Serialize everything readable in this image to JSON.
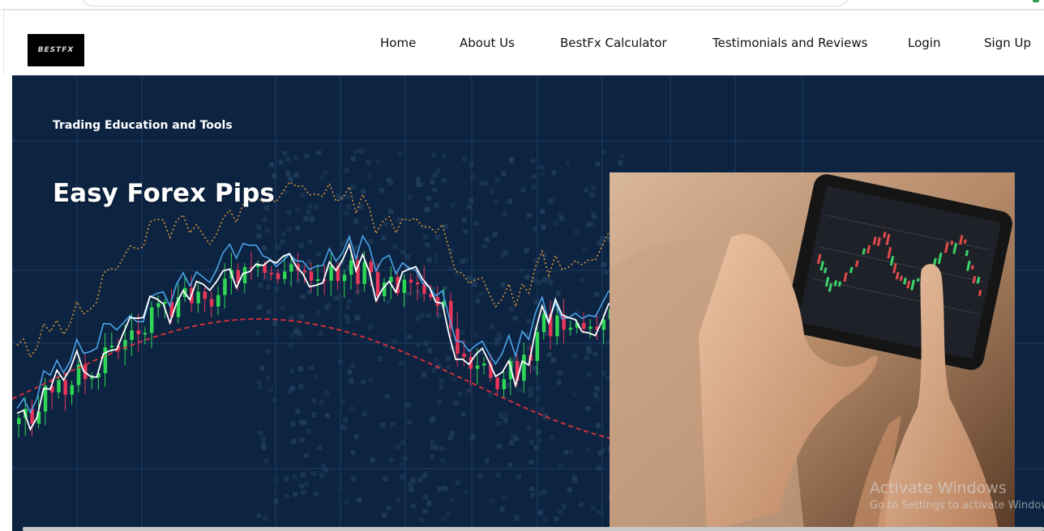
{
  "brand": {
    "logo_text": "BESTFX"
  },
  "nav": {
    "items": [
      {
        "label": "Home"
      },
      {
        "label": "About Us"
      },
      {
        "label": "BestFx Calculator"
      },
      {
        "label": "Testimonials and Reviews"
      },
      {
        "label": "Login"
      },
      {
        "label": "Sign Up"
      }
    ]
  },
  "hero": {
    "eyebrow": "Trading Education and Tools",
    "title": "Easy Forex Pips"
  },
  "watermark": {
    "title": "Activate Windows",
    "subtitle": "Go to Settings to activate Windows."
  },
  "colors": {
    "hero_bg": "#0c2341",
    "candle_up": "#2fd655",
    "candle_down": "#e8355a",
    "line_white": "#ffffff",
    "line_blue": "#4aa3e8",
    "line_orange": "#d9953a",
    "line_red": "#d0303a"
  }
}
